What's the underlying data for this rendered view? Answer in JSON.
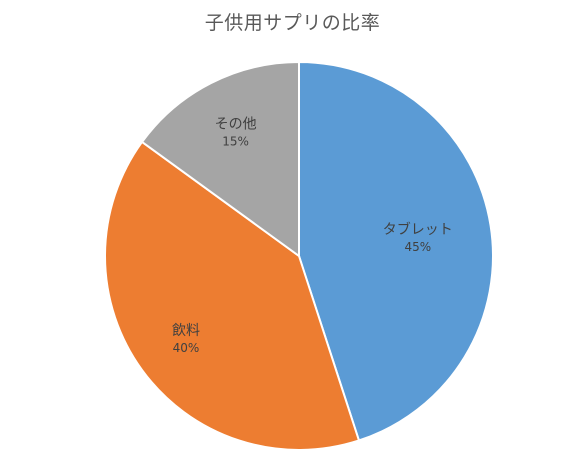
{
  "chart_data": {
    "type": "pie",
    "title": "子供用サプリの比率",
    "slices": [
      {
        "label": "タブレット",
        "value": 45,
        "display": "45%",
        "color": "#5b9bd5"
      },
      {
        "label": "飲料",
        "value": 40,
        "display": "40%",
        "color": "#ed7d31"
      },
      {
        "label": "その他",
        "value": 15,
        "display": "15%",
        "color": "#a5a5a5"
      }
    ],
    "legend": "none",
    "data_labels": "category and percentage inside slices"
  }
}
